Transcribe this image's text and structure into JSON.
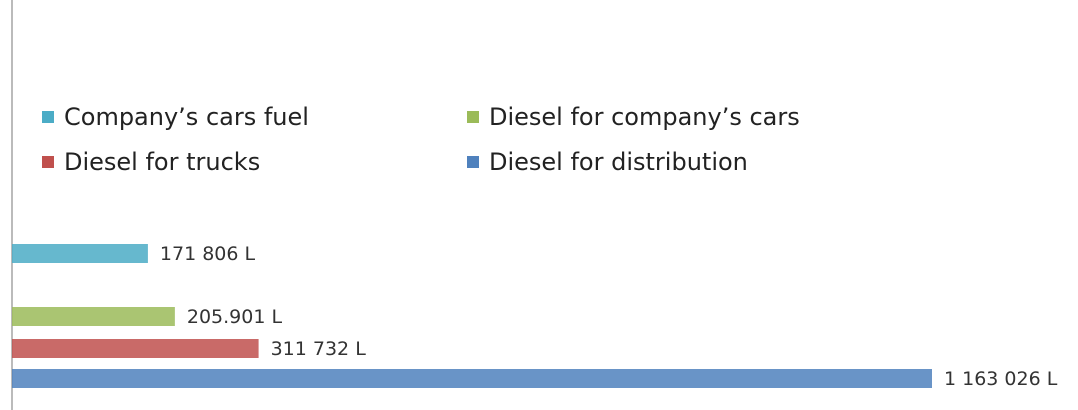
{
  "chart_data": {
    "type": "bar",
    "orientation": "horizontal",
    "series": [
      {
        "name": "Company’s cars fuel",
        "color": "#4bacc6",
        "values": [
          171806
        ],
        "value_labels": [
          "171 806 L"
        ]
      },
      {
        "name": "Diesel for company’s cars",
        "color": "#9bbb59",
        "values": [
          205901
        ],
        "value_labels": [
          "205.901 L"
        ]
      },
      {
        "name": "Diesel for trucks",
        "color": "#c0504d",
        "values": [
          311732
        ],
        "value_labels": [
          "311 732 L"
        ]
      },
      {
        "name": "Diesel for distribution",
        "color": "#4f81bd",
        "values": [
          1163026
        ],
        "value_labels": [
          "1 163 026 L"
        ]
      }
    ]
  }
}
